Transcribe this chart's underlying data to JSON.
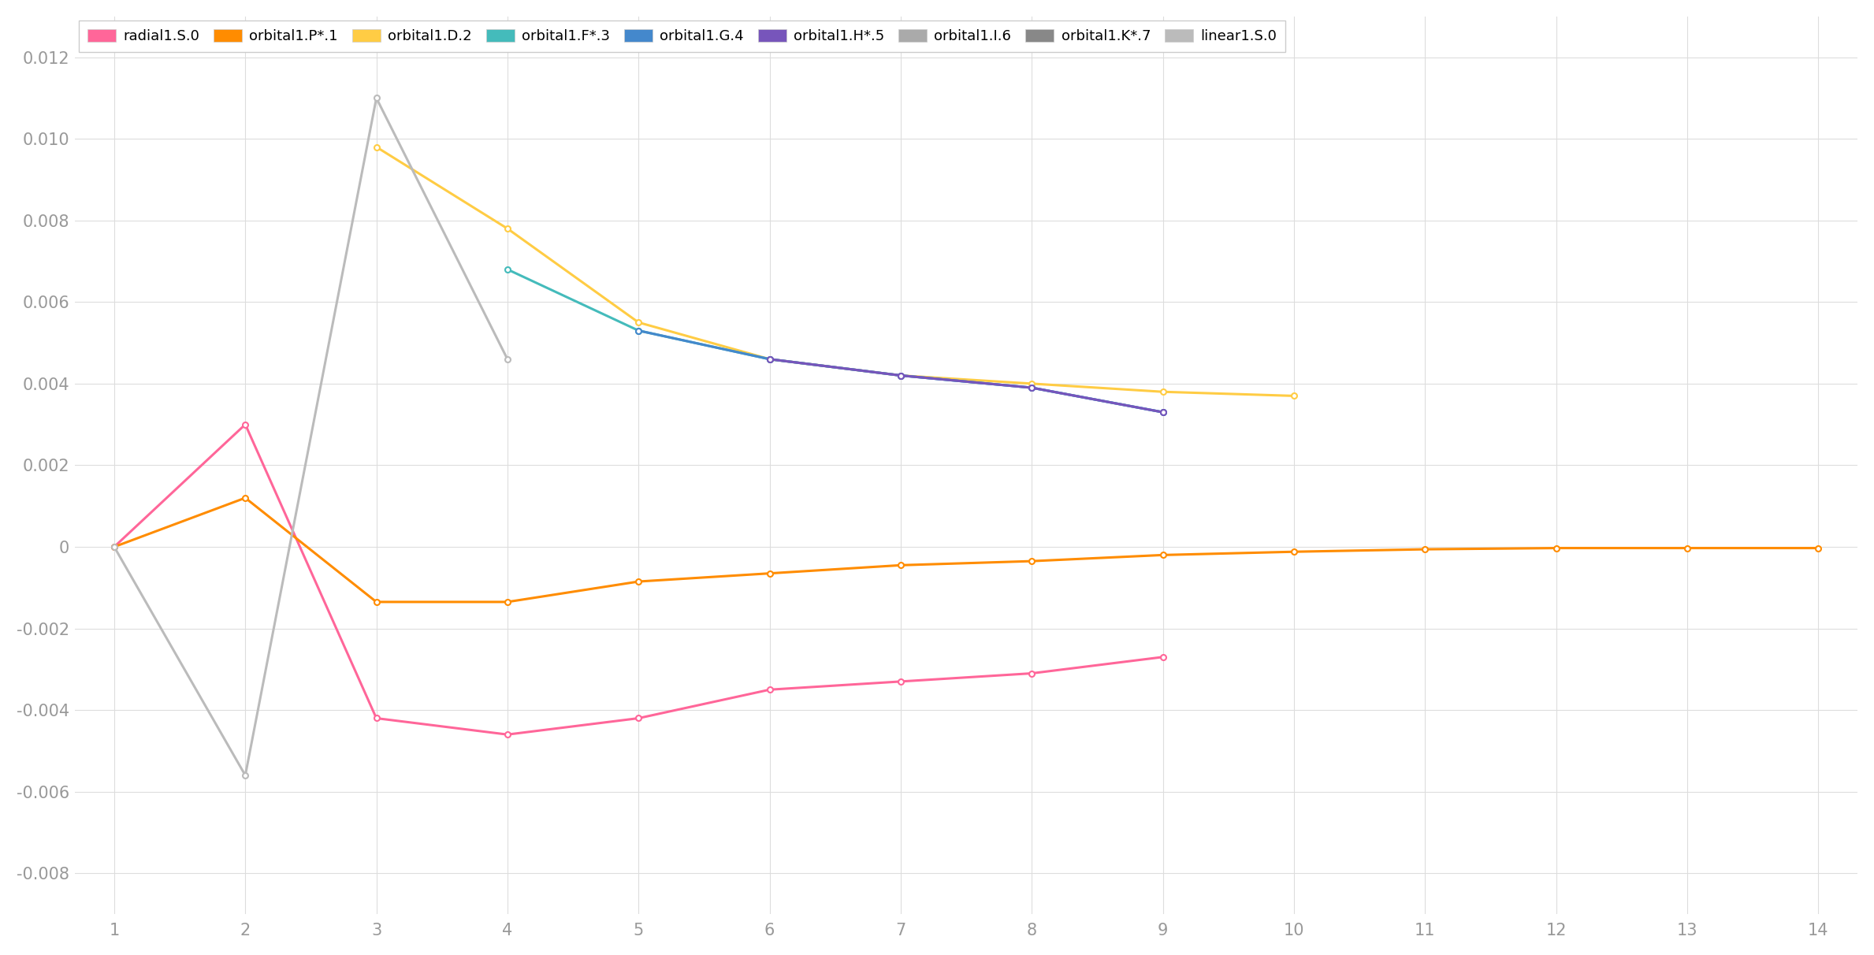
{
  "x_values": [
    1,
    2,
    3,
    4,
    5,
    6,
    7,
    8,
    9,
    10,
    11,
    12,
    13,
    14
  ],
  "series": {
    "radial1.S.0": {
      "color": "#FF6699",
      "linewidth": 2.2,
      "data": [
        0.0,
        0.003,
        -0.0042,
        -0.0046,
        -0.0042,
        -0.0035,
        -0.0033,
        -0.0031,
        -0.0027,
        null,
        null,
        null,
        null,
        null
      ]
    },
    "orbital1.P*.1": {
      "color": "#FF8C00",
      "linewidth": 2.2,
      "data": [
        0.0,
        0.0012,
        -0.00135,
        -0.00135,
        -0.00085,
        -0.00065,
        -0.00045,
        -0.00035,
        -0.0002,
        -0.00012,
        -6e-05,
        -3e-05,
        -3e-05,
        -3e-05
      ]
    },
    "orbital1.D.2": {
      "color": "#FFCC44",
      "linewidth": 2.2,
      "data": [
        null,
        null,
        0.0098,
        0.0078,
        0.0055,
        0.0046,
        0.0042,
        0.004,
        0.0038,
        0.0037,
        null,
        null,
        null,
        null
      ]
    },
    "orbital1.F*.3": {
      "color": "#44BBBB",
      "linewidth": 2.2,
      "data": [
        null,
        null,
        null,
        0.0068,
        0.0053,
        0.0046,
        0.0042,
        0.0039,
        0.0033,
        null,
        null,
        null,
        null,
        null
      ]
    },
    "orbital1.G.4": {
      "color": "#4488CC",
      "linewidth": 2.2,
      "data": [
        null,
        null,
        null,
        null,
        0.0053,
        0.0046,
        0.0042,
        0.0039,
        0.0033,
        null,
        null,
        null,
        null,
        null
      ]
    },
    "orbital1.H*.5": {
      "color": "#7755BB",
      "linewidth": 2.2,
      "data": [
        null,
        null,
        null,
        null,
        null,
        0.0046,
        0.0042,
        0.0039,
        0.0033,
        null,
        null,
        null,
        null,
        null
      ]
    },
    "orbital1.I.6": {
      "color": "#AAAAAA",
      "linewidth": 2.2,
      "data": [
        null,
        null,
        null,
        null,
        null,
        null,
        null,
        null,
        null,
        null,
        null,
        null,
        null,
        null
      ]
    },
    "orbital1.K*.7": {
      "color": "#888888",
      "linewidth": 2.2,
      "data": [
        null,
        null,
        null,
        null,
        null,
        null,
        null,
        null,
        null,
        null,
        null,
        null,
        null,
        null
      ]
    },
    "linear1.S.0": {
      "color": "#BBBBBB",
      "linewidth": 2.2,
      "data": [
        0.0,
        -0.0056,
        0.011,
        0.0046,
        null,
        null,
        null,
        null,
        null,
        null,
        null,
        null,
        null,
        null
      ]
    }
  },
  "series_order": [
    "radial1.S.0",
    "orbital1.P*.1",
    "orbital1.D.2",
    "orbital1.F*.3",
    "orbital1.G.4",
    "orbital1.H*.5",
    "orbital1.I.6",
    "orbital1.K*.7",
    "linear1.S.0"
  ],
  "xlim": [
    0.7,
    14.3
  ],
  "ylim": [
    -0.009,
    0.013
  ],
  "yticks": [
    -0.008,
    -0.006,
    -0.004,
    -0.002,
    0,
    0.002,
    0.004,
    0.006,
    0.008,
    0.01,
    0.012
  ],
  "xticks": [
    1,
    2,
    3,
    4,
    5,
    6,
    7,
    8,
    9,
    10,
    11,
    12,
    13,
    14
  ],
  "background_color": "#FFFFFF",
  "grid_color": "#DDDDDD"
}
